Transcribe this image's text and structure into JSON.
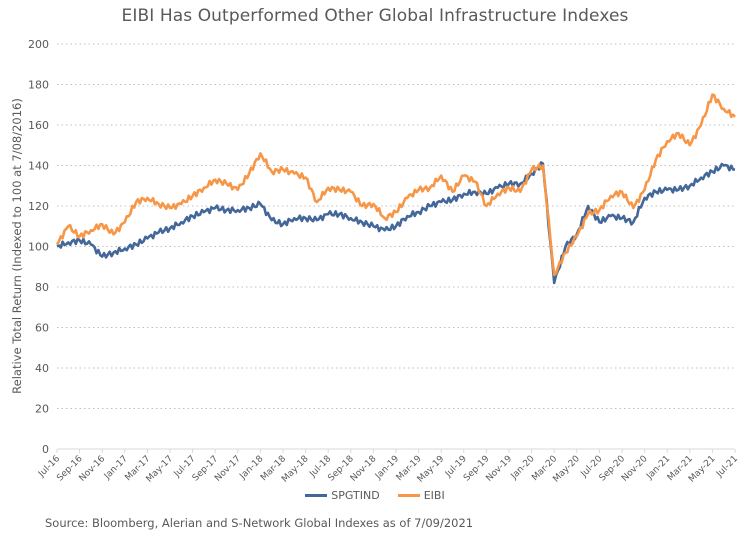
{
  "chart_data": {
    "type": "line",
    "title": "EIBI Has Outperformed Other Global Infrastructure Indexes",
    "xlabel": "",
    "ylabel": "Relative Total Return (Indexed to 100 at 7/08/2016)",
    "ylim": [
      0,
      200
    ],
    "yticks": [
      0,
      20,
      40,
      60,
      80,
      100,
      120,
      140,
      160,
      180,
      200
    ],
    "grid": "horizontal-dotted",
    "legend": "bottom-center",
    "x_tick_labels": [
      "Jul-16",
      "Sep-16",
      "Nov-16",
      "Jan-17",
      "Mar-17",
      "May-17",
      "Jul-17",
      "Sep-17",
      "Nov-17",
      "Jan-18",
      "Mar-18",
      "May-18",
      "Jul-18",
      "Sep-18",
      "Nov-18",
      "Jan-19",
      "Mar-19",
      "May-19",
      "Jul-19",
      "Sep-19",
      "Nov-19",
      "Jan-20",
      "Mar-20",
      "May-20",
      "Jul-20",
      "Sep-20",
      "Nov-20",
      "Jan-21",
      "Mar-21",
      "May-21",
      "Jul-21"
    ],
    "x": [
      "Jul-16",
      "Aug-16",
      "Sep-16",
      "Oct-16",
      "Nov-16",
      "Dec-16",
      "Jan-17",
      "Feb-17",
      "Mar-17",
      "Apr-17",
      "May-17",
      "Jun-17",
      "Jul-17",
      "Aug-17",
      "Sep-17",
      "Oct-17",
      "Nov-17",
      "Dec-17",
      "Jan-18",
      "Feb-18",
      "Mar-18",
      "Apr-18",
      "May-18",
      "Jun-18",
      "Jul-18",
      "Aug-18",
      "Sep-18",
      "Oct-18",
      "Nov-18",
      "Dec-18",
      "Jan-19",
      "Feb-19",
      "Mar-19",
      "Apr-19",
      "May-19",
      "Jun-19",
      "Jul-19",
      "Aug-19",
      "Sep-19",
      "Oct-19",
      "Nov-19",
      "Dec-19",
      "Jan-20",
      "Feb-20",
      "Mar-20",
      "Apr-20",
      "May-20",
      "Jun-20",
      "Jul-20",
      "Aug-20",
      "Sep-20",
      "Oct-20",
      "Nov-20",
      "Dec-20",
      "Jan-21",
      "Feb-21",
      "Mar-21",
      "Apr-21",
      "May-21",
      "Jun-21",
      "Jul-21"
    ],
    "series": [
      {
        "name": "SPGTIND",
        "color": "#44679A",
        "values": [
          100,
          102,
          103,
          101,
          95,
          97,
          99,
          101,
          104,
          107,
          109,
          112,
          115,
          117,
          119,
          118,
          118,
          119,
          121,
          113,
          111,
          114,
          114,
          113,
          116,
          116,
          114,
          112,
          110,
          108,
          110,
          115,
          117,
          120,
          122,
          123,
          126,
          127,
          126,
          129,
          131,
          131,
          136,
          141,
          82,
          100,
          106,
          120,
          112,
          115,
          114,
          112,
          124,
          127,
          128,
          128,
          130,
          134,
          137,
          140,
          138
        ]
      },
      {
        "name": "EIBI",
        "color": "#F79646",
        "values": [
          101,
          110,
          105,
          108,
          111,
          106,
          112,
          122,
          124,
          121,
          119,
          121,
          125,
          129,
          133,
          131,
          128,
          136,
          146,
          137,
          138,
          136,
          134,
          122,
          129,
          128,
          127,
          120,
          121,
          114,
          117,
          124,
          128,
          129,
          135,
          127,
          135,
          132,
          120,
          126,
          129,
          127,
          138,
          140,
          86,
          97,
          105,
          116,
          118,
          125,
          127,
          119,
          128,
          143,
          152,
          156,
          150,
          160,
          175,
          168,
          164
        ]
      }
    ]
  },
  "legend": {
    "items": [
      {
        "label": "SPGTIND",
        "color": "#44679A"
      },
      {
        "label": "EIBI",
        "color": "#F79646"
      }
    ]
  },
  "footer": {
    "source": "Source: Bloomberg, Alerian and S-Network Global Indexes as of 7/09/2021"
  }
}
